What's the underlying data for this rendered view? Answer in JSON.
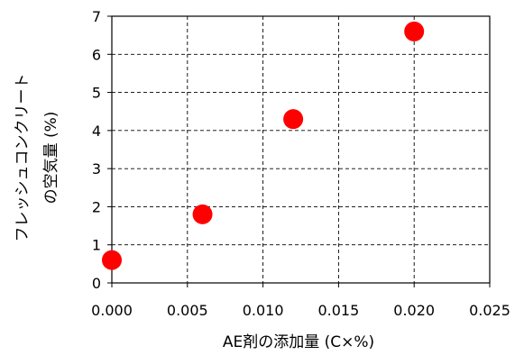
{
  "chart_data": {
    "type": "scatter",
    "xlabel": "AE剤の添加量 (C×%)",
    "ylabel_lines": [
      "フレッシュコンクリート",
      "の空気量 (%)"
    ],
    "xlim": [
      0,
      0.025
    ],
    "ylim": [
      0,
      7
    ],
    "xticks": [
      0,
      0.005,
      0.01,
      0.015,
      0.02,
      0.025
    ],
    "yticks": [
      0,
      1,
      2,
      3,
      4,
      5,
      6,
      7
    ],
    "xtick_labels": [
      "0.000",
      "0.005",
      "0.010",
      "0.015",
      "0.020",
      "0.025"
    ],
    "ytick_labels": [
      "0",
      "1",
      "2",
      "3",
      "4",
      "5",
      "6",
      "7"
    ],
    "grid": true,
    "grid_style": "dashed",
    "points": [
      {
        "x": 0.0,
        "y": 0.6
      },
      {
        "x": 0.006,
        "y": 1.8
      },
      {
        "x": 0.012,
        "y": 4.3
      },
      {
        "x": 0.02,
        "y": 6.6
      }
    ],
    "marker_color": "#ff0000"
  }
}
